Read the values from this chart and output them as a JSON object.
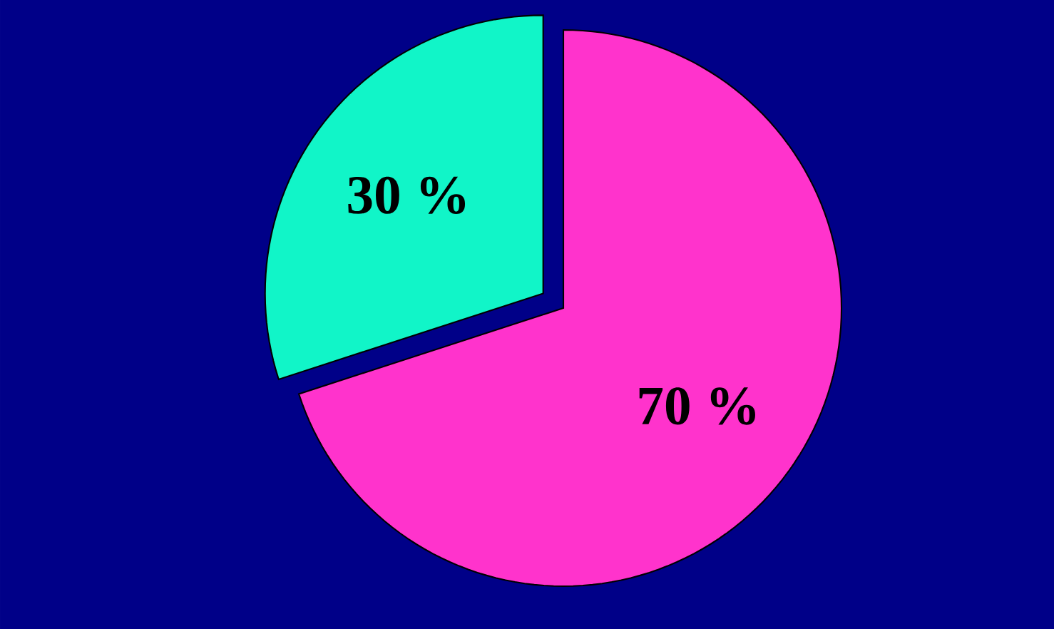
{
  "chart_data": {
    "type": "pie",
    "categories": [
      null,
      null
    ],
    "values": [
      70,
      30
    ],
    "colors": [
      "#ff33cc",
      "#11f5c8"
    ],
    "value_labels": [
      "70 %",
      "30 %"
    ]
  }
}
